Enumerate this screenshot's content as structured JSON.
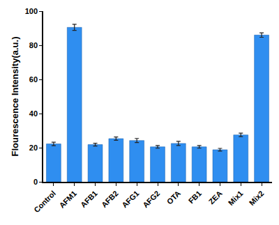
{
  "chart_data": {
    "type": "bar",
    "y_label": "Flourescence Intensity(a.u.)",
    "categories": [
      "Control",
      "AFM1",
      "AFB1",
      "AFB2",
      "AFG1",
      "AFG2",
      "OTA",
      "FB1",
      "ZEA",
      "Mix1",
      "Mix2"
    ],
    "values": [
      22.2,
      90.5,
      21.8,
      25.3,
      24.2,
      20.5,
      22.5,
      20.5,
      18.8,
      27.5,
      86.0
    ],
    "errors": [
      1.0,
      1.8,
      0.8,
      1.0,
      1.2,
      0.8,
      1.2,
      0.8,
      0.8,
      1.0,
      1.3
    ],
    "color": "#2f8ef0",
    "ylim": [
      0,
      100
    ],
    "yticks": [
      0,
      20,
      40,
      60,
      80,
      100
    ],
    "grid": false
  }
}
